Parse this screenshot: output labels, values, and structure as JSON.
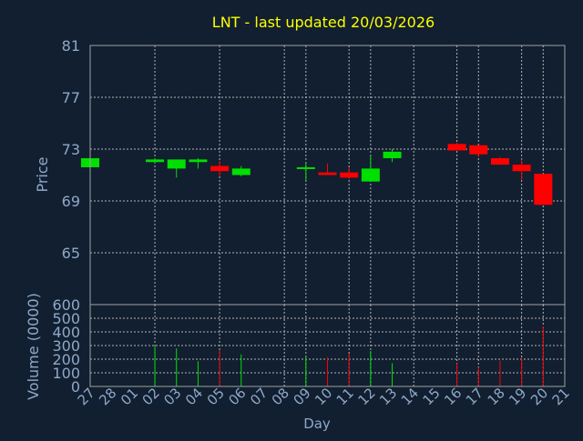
{
  "chart_data": {
    "type": "candlestick",
    "title": "LNT - last updated 20/03/2026",
    "xlabel": "Day",
    "price_axis": {
      "label": "Price",
      "ylim": [
        61,
        81
      ],
      "ticks": [
        81,
        77,
        73,
        69,
        65
      ]
    },
    "volume_axis": {
      "label": "Volume (0000)",
      "ylim": [
        0,
        600
      ],
      "ticks": [
        600,
        500,
        400,
        300,
        200,
        100,
        0
      ]
    },
    "x_tick_labels": [
      "27",
      "28",
      "01",
      "02",
      "03",
      "04",
      "05",
      "06",
      "07",
      "08",
      "09",
      "10",
      "11",
      "12",
      "13",
      "14",
      "15",
      "16",
      "17",
      "18",
      "19",
      "20",
      "21"
    ],
    "grid": true,
    "colors": {
      "background": "#111f30",
      "axis": "#a0a0a0",
      "grid": "#b4b4b4",
      "title": "#ffff00",
      "label": "#8fa8c8",
      "up": "#00e000",
      "down": "#ff0000"
    },
    "candles": [
      {
        "day": "27",
        "open": 71.6,
        "close": 72.3,
        "high": 72.3,
        "low": 71.6,
        "direction": "up"
      },
      {
        "day": "02",
        "open": 72.0,
        "close": 72.2,
        "high": 72.3,
        "low": 71.9,
        "direction": "up"
      },
      {
        "day": "03",
        "open": 71.5,
        "close": 72.2,
        "high": 72.2,
        "low": 70.8,
        "direction": "up"
      },
      {
        "day": "04",
        "open": 72.0,
        "close": 72.2,
        "high": 72.3,
        "low": 71.5,
        "direction": "up"
      },
      {
        "day": "05",
        "open": 71.7,
        "close": 71.3,
        "high": 72.1,
        "low": 70.9,
        "direction": "down"
      },
      {
        "day": "06",
        "open": 71.0,
        "close": 71.5,
        "high": 71.7,
        "low": 70.9,
        "direction": "up"
      },
      {
        "day": "09",
        "open": 71.5,
        "close": 71.6,
        "high": 71.9,
        "low": 70.6,
        "direction": "up"
      },
      {
        "day": "10",
        "open": 71.2,
        "close": 71.0,
        "high": 71.9,
        "low": 71.0,
        "direction": "down"
      },
      {
        "day": "11",
        "open": 71.2,
        "close": 70.8,
        "high": 71.6,
        "low": 70.7,
        "direction": "down"
      },
      {
        "day": "12",
        "open": 70.5,
        "close": 71.5,
        "high": 72.5,
        "low": 70.5,
        "direction": "up"
      },
      {
        "day": "13",
        "open": 72.3,
        "close": 72.8,
        "high": 73.0,
        "low": 72.0,
        "direction": "up"
      },
      {
        "day": "16",
        "open": 73.4,
        "close": 72.9,
        "high": 73.5,
        "low": 72.9,
        "direction": "down"
      },
      {
        "day": "17",
        "open": 73.3,
        "close": 72.6,
        "high": 73.3,
        "low": 72.4,
        "direction": "down"
      },
      {
        "day": "18",
        "open": 72.3,
        "close": 71.8,
        "high": 72.4,
        "low": 71.8,
        "direction": "down"
      },
      {
        "day": "19",
        "open": 71.8,
        "close": 71.3,
        "high": 72.2,
        "low": 70.6,
        "direction": "down"
      },
      {
        "day": "20",
        "open": 71.1,
        "close": 68.7,
        "high": 71.1,
        "low": 68.7,
        "direction": "down"
      }
    ],
    "volume": [
      {
        "day": "02",
        "value": 300,
        "direction": "up"
      },
      {
        "day": "03",
        "value": 280,
        "direction": "up"
      },
      {
        "day": "04",
        "value": 185,
        "direction": "up"
      },
      {
        "day": "05",
        "value": 265,
        "direction": "down"
      },
      {
        "day": "06",
        "value": 235,
        "direction": "up"
      },
      {
        "day": "09",
        "value": 215,
        "direction": "up"
      },
      {
        "day": "10",
        "value": 215,
        "direction": "down"
      },
      {
        "day": "11",
        "value": 240,
        "direction": "down"
      },
      {
        "day": "12",
        "value": 260,
        "direction": "up"
      },
      {
        "day": "13",
        "value": 170,
        "direction": "up"
      },
      {
        "day": "16",
        "value": 170,
        "direction": "down"
      },
      {
        "day": "17",
        "value": 140,
        "direction": "down"
      },
      {
        "day": "18",
        "value": 190,
        "direction": "down"
      },
      {
        "day": "19",
        "value": 210,
        "direction": "down"
      },
      {
        "day": "20",
        "value": 440,
        "direction": "down"
      }
    ]
  }
}
